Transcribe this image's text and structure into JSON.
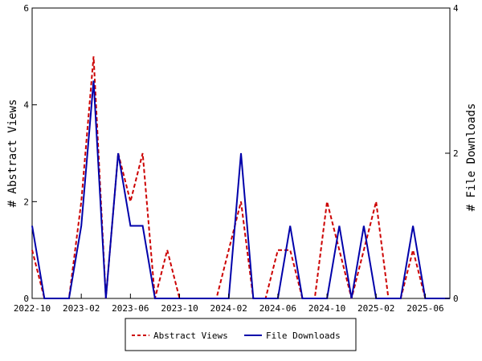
{
  "chart_data": {
    "type": "line",
    "x": [
      "2022-10",
      "2022-11",
      "2022-12",
      "2023-01",
      "2023-02",
      "2023-03",
      "2023-04",
      "2023-05",
      "2023-06",
      "2023-07",
      "2023-08",
      "2023-09",
      "2023-10",
      "2023-11",
      "2023-12",
      "2024-01",
      "2024-02",
      "2024-03",
      "2024-04",
      "2024-05",
      "2024-06",
      "2024-07",
      "2024-08",
      "2024-09",
      "2024-10",
      "2024-11",
      "2024-12",
      "2025-01",
      "2025-02",
      "2025-03",
      "2025-04",
      "2025-05",
      "2025-06",
      "2025-07",
      "2025-08"
    ],
    "series": [
      {
        "name": "Abstract Views",
        "axis": "left",
        "color": "#cc0000",
        "dash": true,
        "values": [
          1,
          0,
          0,
          0,
          2,
          5,
          0,
          3,
          2,
          3,
          0,
          1,
          0,
          0,
          0,
          0,
          1,
          2,
          0,
          0,
          1,
          1,
          0,
          0,
          2,
          1,
          0,
          1,
          2,
          0,
          0,
          1,
          0,
          0,
          0
        ]
      },
      {
        "name": "File Downloads",
        "axis": "right",
        "color": "#0000aa",
        "dash": false,
        "values": [
          1,
          0,
          0,
          0,
          1,
          3,
          0,
          2,
          1,
          1,
          0,
          0,
          0,
          0,
          0,
          0,
          0,
          2,
          0,
          0,
          0,
          1,
          0,
          0,
          0,
          1,
          0,
          1,
          0,
          0,
          0,
          1,
          0,
          0,
          0
        ]
      }
    ],
    "xticks": [
      "2022-10",
      "2023-02",
      "2023-06",
      "2023-10",
      "2024-02",
      "2024-06",
      "2024-10",
      "2025-02",
      "2025-06"
    ],
    "ylabel": "# Abstract Views",
    "y2label": "# File Downloads",
    "ylim": [
      0,
      6
    ],
    "y2lim": [
      0,
      4
    ],
    "yticks": [
      "0",
      "2",
      "4",
      "6"
    ],
    "y2ticks": [
      "0",
      "2",
      "4"
    ],
    "grid": false,
    "legend": "bottom"
  }
}
